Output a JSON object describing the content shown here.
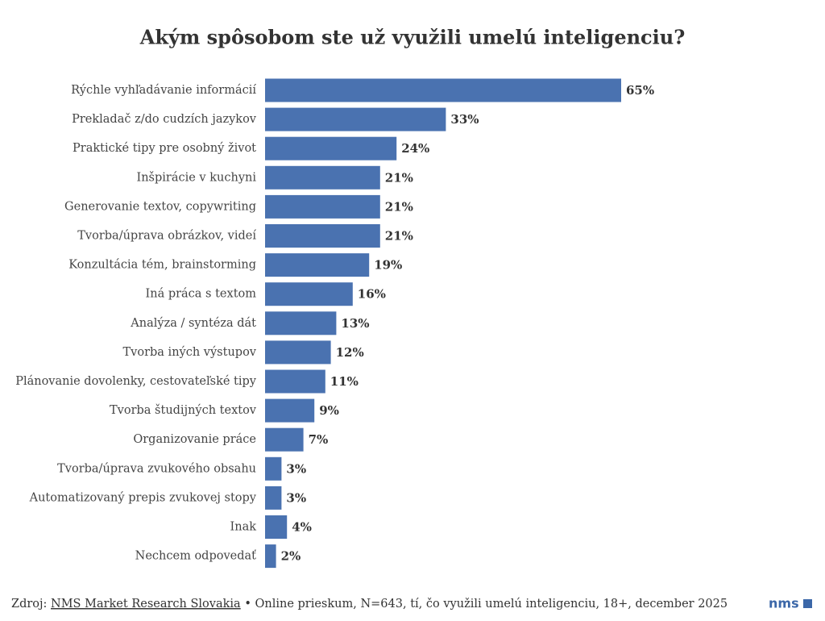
{
  "chart_data": {
    "type": "bar",
    "orientation": "horizontal",
    "title": "Akým spôsobom ste už využili umelú inteligenciu?",
    "categories": [
      "Rýchle vyhľadávanie informácií",
      "Prekladač z/do cudzích jazykov",
      "Praktické tipy pre osobný život",
      "Inšpirácie v kuchyni",
      "Generovanie textov, copywriting",
      "Tvorba/úprava obrázkov, videí",
      "Konzultácia tém, brainstorming",
      "Iná práca s textom",
      "Analýza / syntéza dát",
      "Tvorba iných výstupov",
      "Plánovanie dovolenky, cestovateľské tipy",
      "Tvorba študijných textov",
      "Organizovanie práce",
      "Tvorba/úprava zvukového obsahu",
      "Automatizovaný prepis zvukovej stopy",
      "Inak",
      "Nechcem odpovedať"
    ],
    "values": [
      65,
      33,
      24,
      21,
      21,
      21,
      19,
      16,
      13,
      12,
      11,
      9,
      7,
      3,
      3,
      4,
      2
    ],
    "value_labels": [
      "65%",
      "33%",
      "24%",
      "21%",
      "21%",
      "21%",
      "19%",
      "16%",
      "13%",
      "12%",
      "11%",
      "9%",
      "7%",
      "3%",
      "3%",
      "4%",
      "2%"
    ],
    "color": "#4a72b0"
  },
  "footer": {
    "source_label": "Zdroj:",
    "source_link": "NMS Market Research Slovakia",
    "source_note": "• Online prieskum, N=643, tí, čo využili umelú inteligenciu, 18+, december 2025",
    "logo": "nms"
  }
}
